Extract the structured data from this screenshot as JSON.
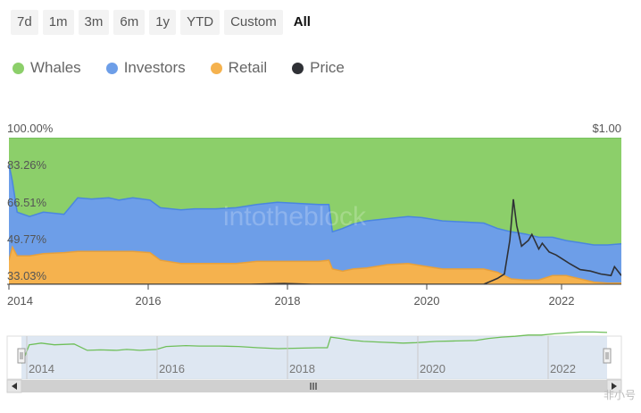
{
  "range_selector": {
    "buttons": [
      "7d",
      "1m",
      "3m",
      "6m",
      "1y",
      "YTD",
      "Custom",
      "All"
    ],
    "active": "All"
  },
  "colors": {
    "whales": "#8ccf6a",
    "investors": "#6d9ee8",
    "retail": "#f5b24e",
    "price": "#2f3136",
    "navigator_fill": "#d6e1ef",
    "navigator_line": "#6fbf5a"
  },
  "legend": [
    {
      "name": "Whales",
      "color": "#8ccf6a",
      "icon": "circle"
    },
    {
      "name": "Investors",
      "color": "#6d9ee8",
      "icon": "circle"
    },
    {
      "name": "Retail",
      "color": "#f5b24e",
      "icon": "circle"
    },
    {
      "name": "Price",
      "color": "#2f3136",
      "icon": "circle"
    }
  ],
  "chart_data": {
    "type": "area",
    "stacking": "percent",
    "x_axis": {
      "ticks": [
        "2014",
        "2016",
        "2018",
        "2020",
        "2022"
      ],
      "range": [
        2014.0,
        2022.9
      ]
    },
    "left_axis": {
      "ticks": [
        "100.00%",
        "83.26%",
        "66.51%",
        "49.77%",
        "33.03%"
      ],
      "range": [
        33.03,
        100.0
      ]
    },
    "right_axis": {
      "ticks": [
        "$1.00"
      ]
    },
    "grid": false,
    "legend_position": "top-left",
    "x": [
      2014.0,
      2014.05,
      2014.12,
      2014.3,
      2014.5,
      2014.8,
      2015.0,
      2015.2,
      2015.45,
      2015.6,
      2015.8,
      2016.05,
      2016.2,
      2016.5,
      2016.7,
      2017.0,
      2017.3,
      2017.6,
      2017.9,
      2018.2,
      2018.5,
      2018.65,
      2018.7,
      2018.85,
      2019.0,
      2019.2,
      2019.5,
      2019.8,
      2020.0,
      2020.3,
      2020.6,
      2020.9,
      2021.1,
      2021.3,
      2021.5,
      2021.7,
      2021.9,
      2022.1,
      2022.3,
      2022.5,
      2022.7,
      2022.9
    ],
    "series": [
      {
        "name": "Retail",
        "values": [
          44.0,
          50.0,
          46.0,
          46.0,
          47.0,
          47.5,
          48.0,
          48.0,
          48.0,
          48.0,
          48.0,
          47.5,
          44.0,
          42.5,
          42.5,
          42.5,
          42.5,
          43.5,
          43.5,
          43.5,
          43.5,
          44.0,
          40.0,
          39.0,
          40.0,
          40.5,
          42.0,
          42.5,
          41.5,
          40.0,
          40.0,
          40.0,
          38.5,
          35.5,
          35.0,
          35.0,
          37.0,
          37.0,
          35.5,
          34.0,
          33.5,
          33.5
        ]
      },
      {
        "name": "Investors",
        "values": [
          88.0,
          80.0,
          66.0,
          64.0,
          66.0,
          65.0,
          72.5,
          72.0,
          72.5,
          71.5,
          72.5,
          71.5,
          68.0,
          67.0,
          67.5,
          67.5,
          68.0,
          69.5,
          70.5,
          70.0,
          69.5,
          69.5,
          57.0,
          58.5,
          60.5,
          62.0,
          63.0,
          64.0,
          63.5,
          62.0,
          61.5,
          61.0,
          58.5,
          57.0,
          56.0,
          54.5,
          54.5,
          53.0,
          52.0,
          51.0,
          51.0,
          51.5
        ]
      },
      {
        "name": "Whales",
        "values": [
          100.0,
          100.0,
          100.0,
          100.0,
          100.0,
          100.0,
          100.0,
          100.0,
          100.0,
          100.0,
          100.0,
          100.0,
          100.0,
          100.0,
          100.0,
          100.0,
          100.0,
          100.0,
          100.0,
          100.0,
          100.0,
          100.0,
          100.0,
          100.0,
          100.0,
          100.0,
          100.0,
          100.0,
          100.0,
          100.0,
          100.0,
          100.0,
          100.0,
          100.0,
          100.0,
          100.0,
          100.0,
          100.0,
          100.0,
          100.0,
          100.0,
          100.0
        ]
      }
    ],
    "price": {
      "name": "Price",
      "x": [
        2014.0,
        2016.0,
        2017.5,
        2018.0,
        2018.4,
        2019.0,
        2020.0,
        2020.6,
        2020.9,
        2021.0,
        2021.1,
        2021.2,
        2021.28,
        2021.33,
        2021.38,
        2021.45,
        2021.55,
        2021.6,
        2021.7,
        2021.75,
        2021.85,
        2021.95,
        2022.05,
        2022.15,
        2022.3,
        2022.45,
        2022.6,
        2022.75,
        2022.8,
        2022.9
      ],
      "values": [
        0.0,
        0.0,
        0.0,
        0.005,
        0.0,
        0.0,
        0.0,
        0.0,
        0.0,
        0.02,
        0.04,
        0.07,
        0.3,
        0.58,
        0.4,
        0.26,
        0.3,
        0.34,
        0.24,
        0.28,
        0.22,
        0.2,
        0.17,
        0.14,
        0.1,
        0.09,
        0.07,
        0.06,
        0.12,
        0.06
      ],
      "ylim": [
        0,
        1.0
      ]
    },
    "navigator": {
      "ticks": [
        "2014",
        "2016",
        "2018",
        "2020",
        "2022"
      ]
    }
  },
  "watermark": {
    "text": "intotheblock"
  },
  "brand_text": "非小号"
}
